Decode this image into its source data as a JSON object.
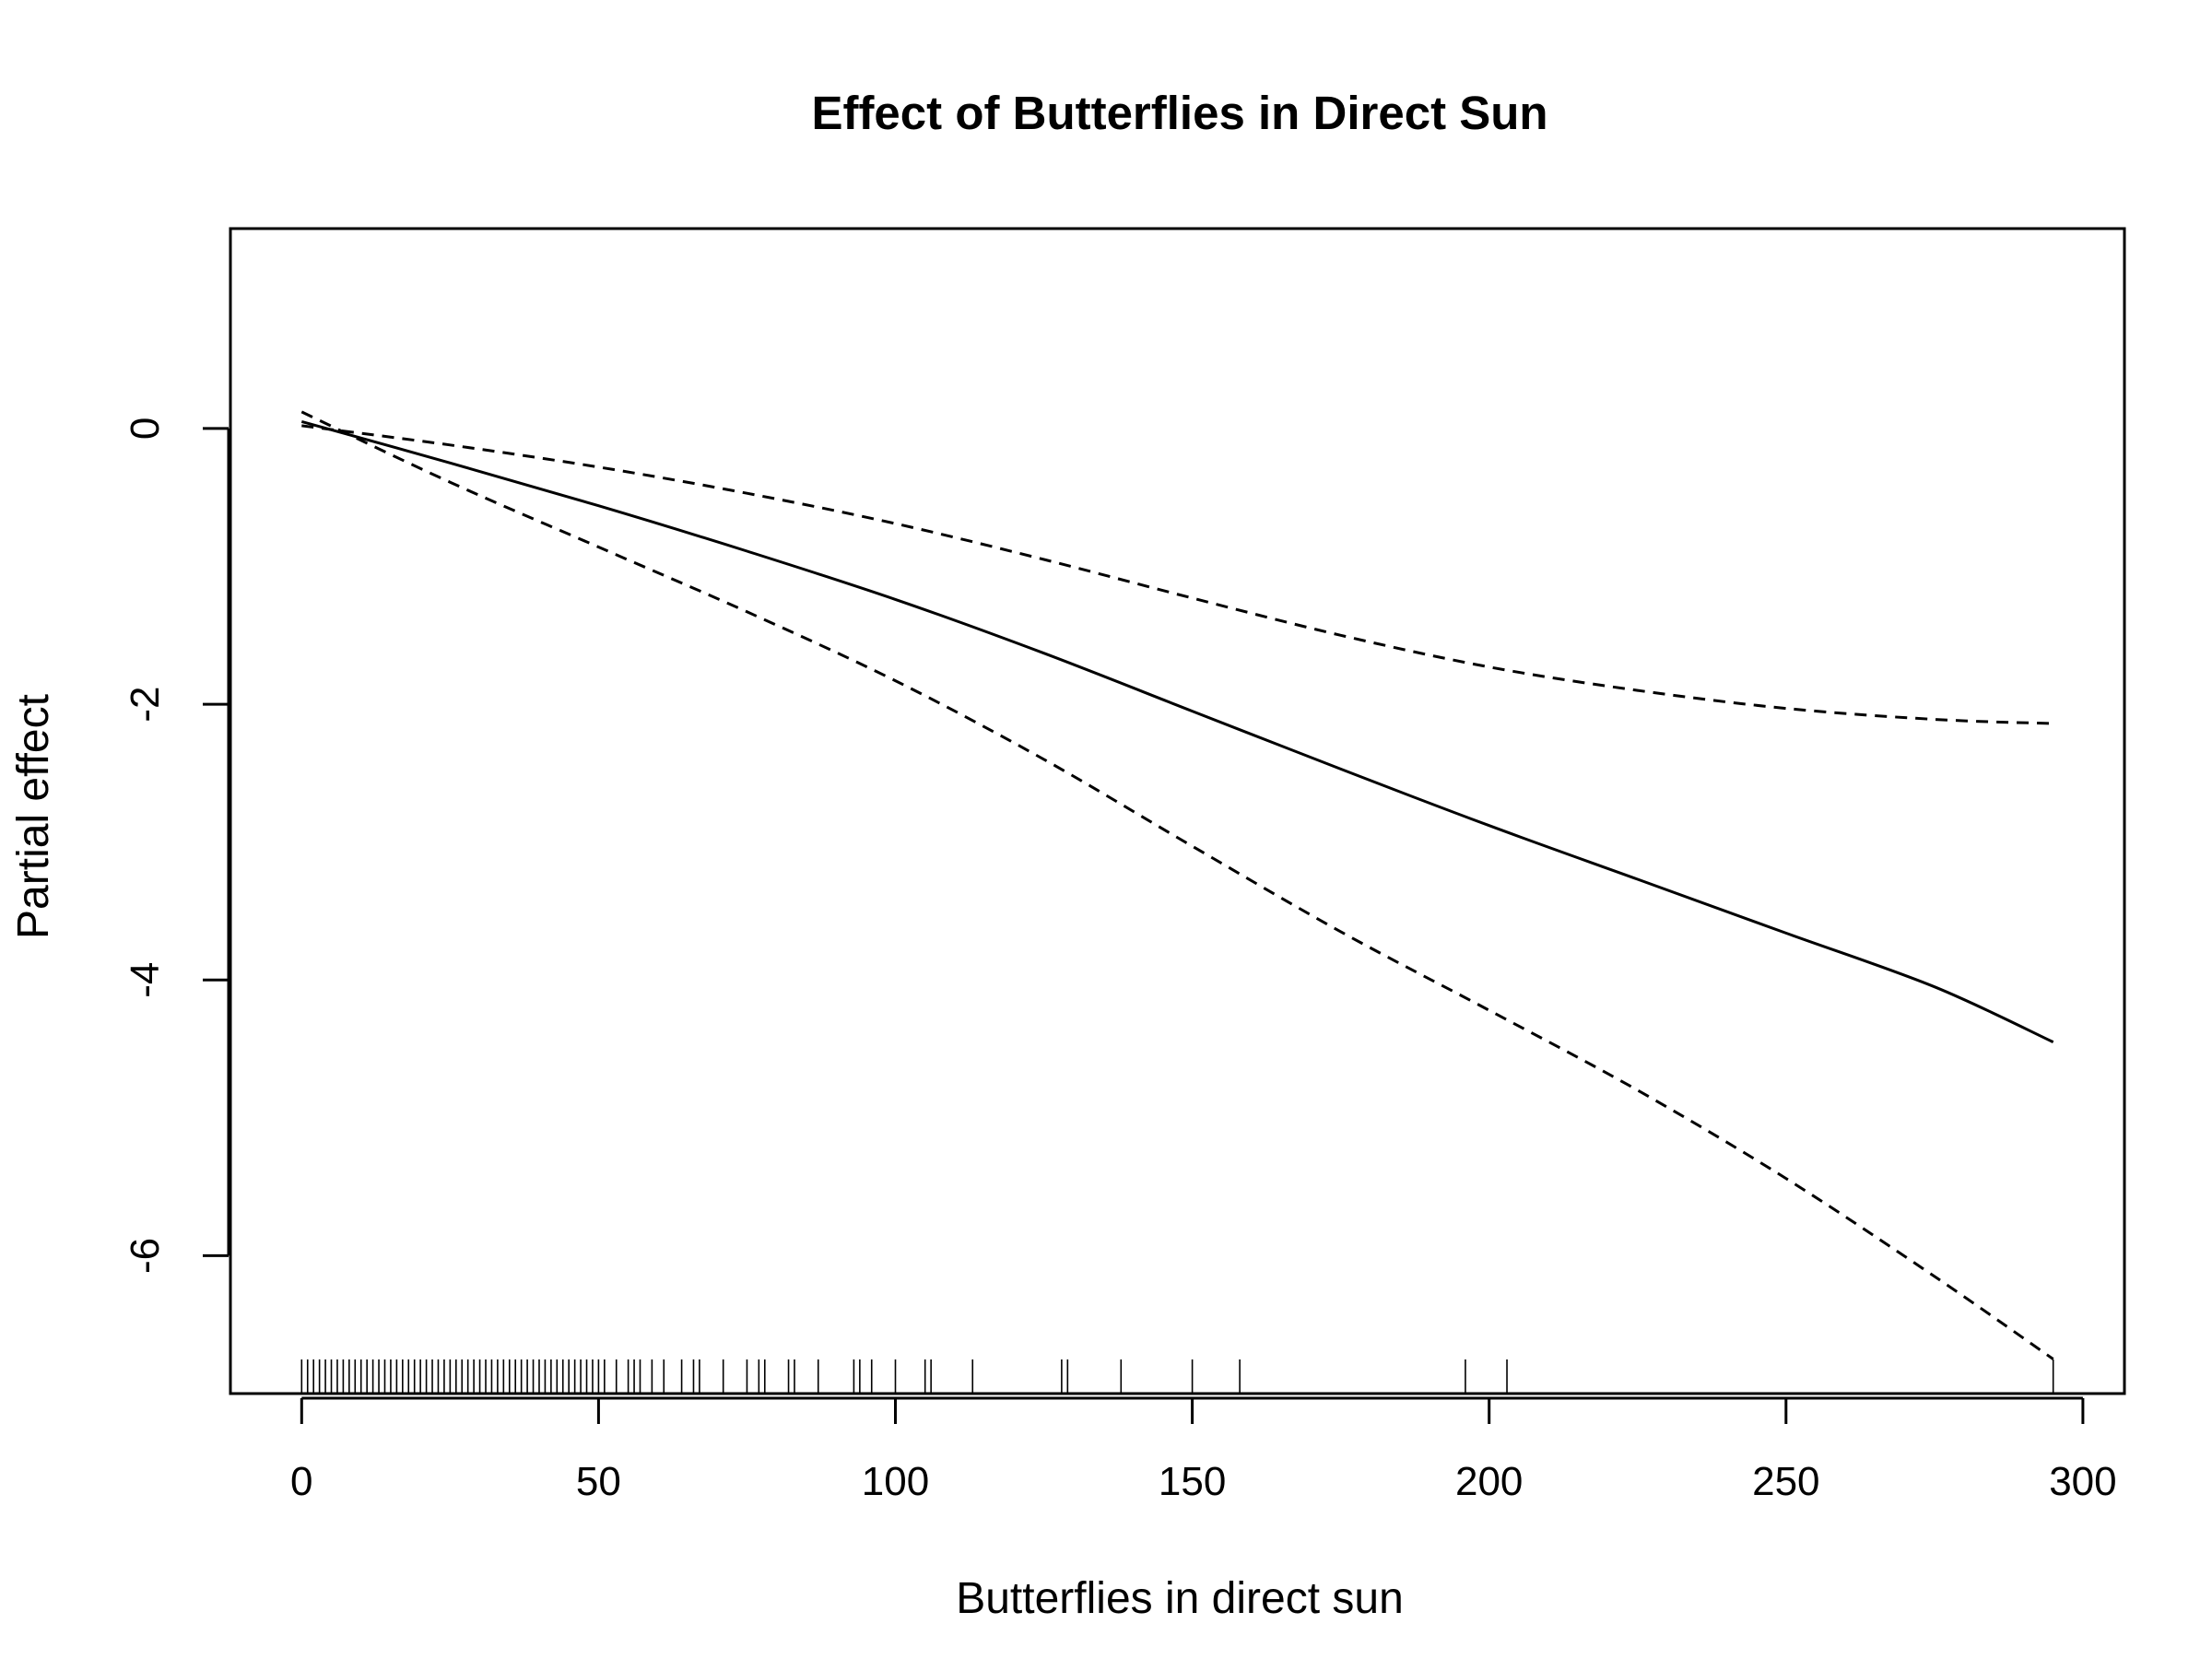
{
  "chart_data": {
    "type": "line",
    "title": "Effect of Butterflies in Direct Sun",
    "xlabel": "Butterflies in direct sun",
    "ylabel": "Partial effect",
    "xlim": [
      -12,
      307
    ],
    "ylim": [
      -7.0,
      1.45
    ],
    "x_ticks": [
      0,
      50,
      100,
      150,
      200,
      250,
      300
    ],
    "x_tick_labels": [
      "0",
      "50",
      "100",
      "150",
      "200",
      "250",
      "300"
    ],
    "y_ticks": [
      0,
      -2,
      -4,
      -6
    ],
    "y_tick_labels": [
      "0",
      "-2",
      "-4",
      "-6"
    ],
    "grid": false,
    "legend": "none",
    "series": [
      {
        "style": "solid",
        "x": [
          0,
          25,
          50,
          75,
          100,
          125,
          150,
          175,
          200,
          225,
          250,
          275,
          295
        ],
        "values": [
          0.05,
          -0.25,
          -0.56,
          -0.89,
          -1.24,
          -1.63,
          -2.05,
          -2.47,
          -2.88,
          -3.27,
          -3.66,
          -4.05,
          -4.45
        ]
      },
      {
        "style": "dashed",
        "x": [
          0,
          25,
          50,
          75,
          100,
          125,
          150,
          175,
          200,
          225,
          250,
          275,
          295
        ],
        "values": [
          0.02,
          -0.12,
          -0.28,
          -0.47,
          -0.69,
          -0.95,
          -1.23,
          -1.5,
          -1.73,
          -1.9,
          -2.03,
          -2.11,
          -2.14
        ]
      },
      {
        "style": "dashed",
        "x": [
          0,
          25,
          50,
          75,
          100,
          125,
          150,
          175,
          200,
          225,
          250,
          275,
          295
        ],
        "values": [
          0.12,
          -0.39,
          -0.86,
          -1.33,
          -1.83,
          -2.4,
          -3.03,
          -3.65,
          -4.22,
          -4.8,
          -5.44,
          -6.15,
          -6.75
        ]
      }
    ],
    "rug": [
      0,
      1,
      2,
      3,
      4,
      5,
      6,
      7,
      8,
      9,
      10,
      11,
      12,
      13,
      14,
      15,
      16,
      17,
      18,
      19,
      20,
      21,
      22,
      23,
      24,
      25,
      26,
      27,
      28,
      29,
      30,
      31,
      32,
      33,
      34,
      35,
      36,
      37,
      38,
      39,
      40,
      41,
      42,
      43,
      44,
      45,
      46,
      47,
      48,
      49,
      50,
      51,
      53,
      55,
      56,
      57,
      59,
      61,
      64,
      66,
      67,
      71,
      75,
      77,
      78,
      82,
      83,
      87,
      93,
      94,
      96,
      100,
      105,
      106,
      113,
      128,
      129,
      138,
      150,
      158,
      196,
      203,
      295
    ]
  }
}
